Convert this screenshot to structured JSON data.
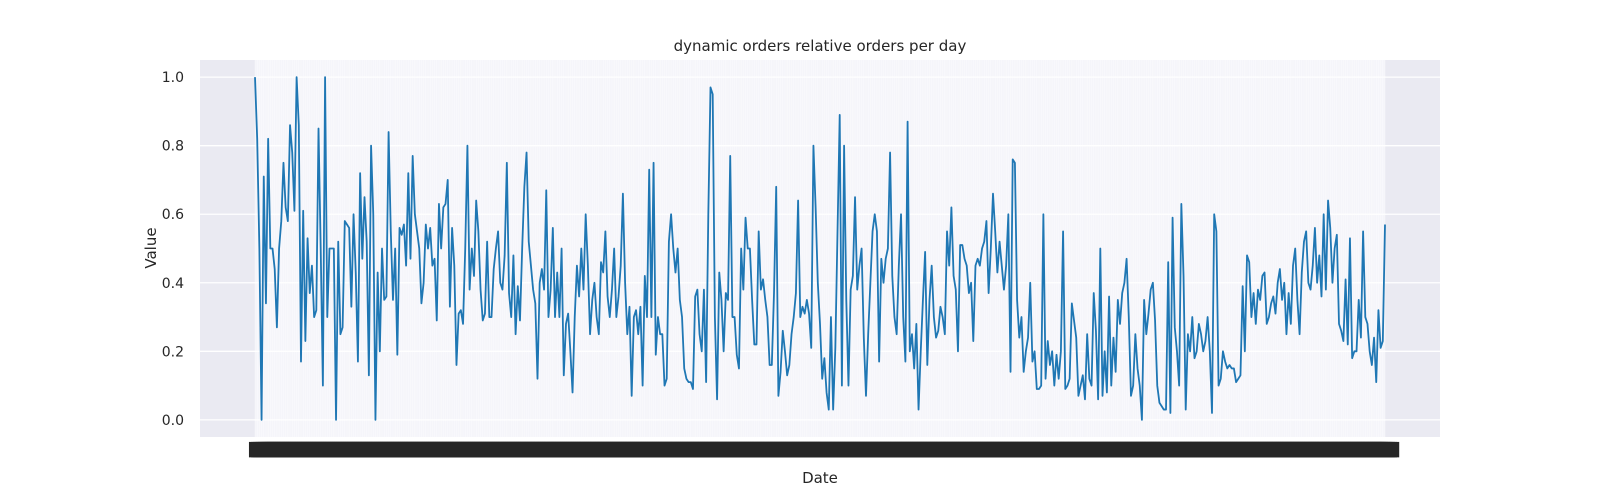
{
  "chart_data": {
    "type": "line",
    "title": "dynamic orders relative orders per day",
    "xlabel": "Date",
    "ylabel": "Value",
    "ylim": [
      -0.05,
      1.05
    ],
    "yticks": [
      0.0,
      0.2,
      0.4,
      0.6,
      0.8,
      1.0
    ],
    "ytick_labels": [
      "0.0",
      "0.2",
      "0.4",
      "0.6",
      "0.8",
      "1.0"
    ],
    "grid": true,
    "x_tick_labels_note": "dense overlapping date labels (unreadable)",
    "series": [
      {
        "color": "#1f77b4",
        "values": [
          1.0,
          0.82,
          0.5,
          0.0,
          0.71,
          0.34,
          0.82,
          0.5,
          0.5,
          0.44,
          0.27,
          0.5,
          0.58,
          0.75,
          0.62,
          0.58,
          0.86,
          0.78,
          0.61,
          1.0,
          0.86,
          0.17,
          0.61,
          0.23,
          0.53,
          0.37,
          0.45,
          0.3,
          0.32,
          0.85,
          0.5,
          0.1,
          1.0,
          0.3,
          0.5,
          0.5,
          0.5,
          0.0,
          0.52,
          0.25,
          0.27,
          0.58,
          0.57,
          0.56,
          0.33,
          0.6,
          0.43,
          0.17,
          0.72,
          0.47,
          0.65,
          0.52,
          0.13,
          0.8,
          0.6,
          0.0,
          0.43,
          0.2,
          0.5,
          0.35,
          0.36,
          0.84,
          0.55,
          0.35,
          0.5,
          0.19,
          0.56,
          0.54,
          0.57,
          0.45,
          0.72,
          0.47,
          0.77,
          0.6,
          0.55,
          0.5,
          0.34,
          0.4,
          0.57,
          0.5,
          0.56,
          0.45,
          0.47,
          0.29,
          0.63,
          0.5,
          0.62,
          0.63,
          0.7,
          0.33,
          0.56,
          0.45,
          0.16,
          0.31,
          0.32,
          0.28,
          0.5,
          0.8,
          0.38,
          0.5,
          0.42,
          0.64,
          0.55,
          0.38,
          0.29,
          0.31,
          0.52,
          0.3,
          0.3,
          0.44,
          0.5,
          0.55,
          0.4,
          0.38,
          0.48,
          0.75,
          0.37,
          0.3,
          0.48,
          0.25,
          0.39,
          0.29,
          0.5,
          0.68,
          0.78,
          0.52,
          0.45,
          0.38,
          0.34,
          0.12,
          0.4,
          0.44,
          0.38,
          0.67,
          0.3,
          0.38,
          0.56,
          0.3,
          0.43,
          0.3,
          0.5,
          0.13,
          0.28,
          0.31,
          0.2,
          0.08,
          0.3,
          0.45,
          0.36,
          0.5,
          0.38,
          0.6,
          0.45,
          0.25,
          0.35,
          0.4,
          0.3,
          0.25,
          0.46,
          0.43,
          0.55,
          0.36,
          0.3,
          0.38,
          0.5,
          0.3,
          0.36,
          0.45,
          0.66,
          0.4,
          0.25,
          0.33,
          0.07,
          0.3,
          0.32,
          0.25,
          0.33,
          0.1,
          0.42,
          0.3,
          0.73,
          0.3,
          0.75,
          0.19,
          0.3,
          0.25,
          0.25,
          0.1,
          0.12,
          0.52,
          0.6,
          0.5,
          0.43,
          0.5,
          0.35,
          0.3,
          0.15,
          0.12,
          0.11,
          0.11,
          0.09,
          0.36,
          0.38,
          0.25,
          0.2,
          0.38,
          0.11,
          0.6,
          0.97,
          0.95,
          0.3,
          0.06,
          0.43,
          0.35,
          0.2,
          0.37,
          0.35,
          0.77,
          0.3,
          0.3,
          0.19,
          0.15,
          0.5,
          0.38,
          0.59,
          0.5,
          0.5,
          0.35,
          0.22,
          0.22,
          0.55,
          0.38,
          0.41,
          0.35,
          0.3,
          0.16,
          0.16,
          0.37,
          0.68,
          0.07,
          0.14,
          0.26,
          0.2,
          0.13,
          0.16,
          0.25,
          0.3,
          0.37,
          0.64,
          0.3,
          0.33,
          0.31,
          0.35,
          0.31,
          0.21,
          0.8,
          0.62,
          0.4,
          0.28,
          0.12,
          0.18,
          0.08,
          0.03,
          0.3,
          0.03,
          0.21,
          0.55,
          0.89,
          0.1,
          0.8,
          0.35,
          0.1,
          0.38,
          0.42,
          0.65,
          0.38,
          0.45,
          0.5,
          0.24,
          0.07,
          0.25,
          0.4,
          0.55,
          0.6,
          0.55,
          0.17,
          0.47,
          0.4,
          0.47,
          0.5,
          0.78,
          0.42,
          0.3,
          0.25,
          0.45,
          0.6,
          0.3,
          0.17,
          0.87,
          0.2,
          0.25,
          0.15,
          0.28,
          0.03,
          0.2,
          0.35,
          0.49,
          0.16,
          0.35,
          0.45,
          0.3,
          0.24,
          0.26,
          0.33,
          0.3,
          0.25,
          0.55,
          0.45,
          0.62,
          0.42,
          0.38,
          0.2,
          0.51,
          0.51,
          0.47,
          0.45,
          0.37,
          0.4,
          0.23,
          0.45,
          0.47,
          0.45,
          0.5,
          0.52,
          0.58,
          0.37,
          0.5,
          0.66,
          0.55,
          0.43,
          0.52,
          0.45,
          0.38,
          0.45,
          0.6,
          0.14,
          0.76,
          0.75,
          0.35,
          0.24,
          0.3,
          0.14,
          0.2,
          0.24,
          0.4,
          0.17,
          0.2,
          0.09,
          0.09,
          0.1,
          0.6,
          0.12,
          0.23,
          0.16,
          0.2,
          0.1,
          0.19,
          0.12,
          0.2,
          0.55,
          0.09,
          0.1,
          0.12,
          0.34,
          0.29,
          0.24,
          0.07,
          0.1,
          0.13,
          0.06,
          0.25,
          0.12,
          0.1,
          0.37,
          0.26,
          0.06,
          0.5,
          0.07,
          0.2,
          0.08,
          0.36,
          0.1,
          0.24,
          0.14,
          0.35,
          0.28,
          0.37,
          0.4,
          0.47,
          0.3,
          0.07,
          0.1,
          0.25,
          0.15,
          0.1,
          0.0,
          0.35,
          0.25,
          0.31,
          0.38,
          0.4,
          0.29,
          0.1,
          0.05,
          0.04,
          0.03,
          0.03,
          0.46,
          0.02,
          0.59,
          0.27,
          0.2,
          0.1,
          0.63,
          0.42,
          0.03,
          0.25,
          0.2,
          0.3,
          0.18,
          0.2,
          0.28,
          0.25,
          0.2,
          0.23,
          0.3,
          0.2,
          0.02,
          0.6,
          0.55,
          0.1,
          0.12,
          0.2,
          0.17,
          0.15,
          0.16,
          0.15,
          0.15,
          0.11,
          0.12,
          0.13,
          0.39,
          0.2,
          0.48,
          0.46,
          0.3,
          0.37,
          0.28,
          0.38,
          0.35,
          0.42,
          0.43,
          0.28,
          0.3,
          0.34,
          0.36,
          0.31,
          0.4,
          0.44,
          0.35,
          0.4,
          0.25,
          0.37,
          0.28,
          0.45,
          0.5,
          0.35,
          0.25,
          0.43,
          0.52,
          0.55,
          0.4,
          0.38,
          0.45,
          0.56,
          0.4,
          0.48,
          0.36,
          0.6,
          0.38,
          0.64,
          0.56,
          0.4,
          0.5,
          0.54,
          0.28,
          0.26,
          0.23,
          0.41,
          0.22,
          0.53,
          0.18,
          0.2,
          0.2,
          0.35,
          0.24,
          0.55,
          0.3,
          0.28,
          0.2,
          0.16,
          0.24,
          0.11,
          0.32,
          0.21,
          0.23,
          0.57
        ]
      }
    ]
  }
}
